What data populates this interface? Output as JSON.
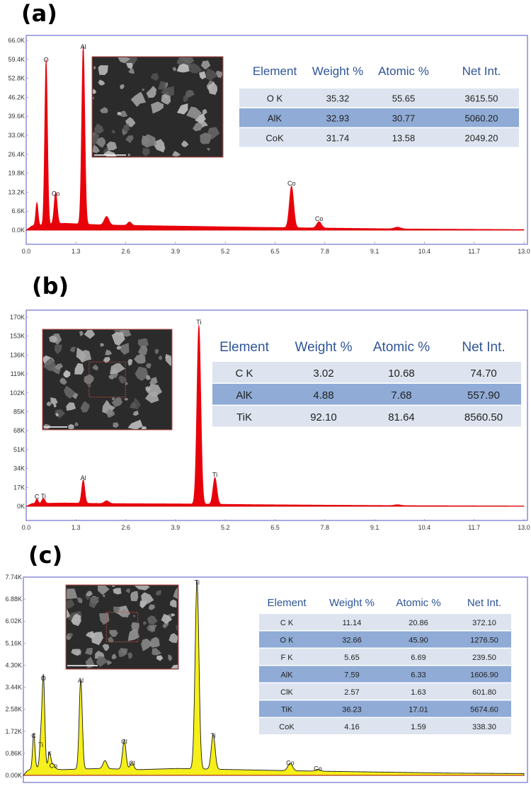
{
  "panels": [
    "(a)",
    "(b)",
    "(c)"
  ],
  "chart_data": [
    {
      "type": "line",
      "x_ticks": [
        "0.0",
        "1.3",
        "2.6",
        "3.9",
        "5.2",
        "6.5",
        "7.8",
        "9.1",
        "10.4",
        "11.7",
        "13.0"
      ],
      "y_ticks": [
        "0.0K",
        "6.6K",
        "13.2K",
        "19.8K",
        "26.4K",
        "33.0K",
        "39.6K",
        "46.2K",
        "52.8K",
        "59.4K",
        "66.0K"
      ],
      "xlim": [
        0,
        13.0
      ],
      "ylim": [
        0,
        66000
      ],
      "fill_color": "#e8000b",
      "line_color": "#e8000b",
      "peaks": [
        {
          "x": 0.28,
          "y": 8000,
          "w": 0.03
        },
        {
          "x": 0.52,
          "y": 57500,
          "w": 0.035
        },
        {
          "x": 0.77,
          "y": 11000,
          "w": 0.04
        },
        {
          "x": 1.49,
          "y": 62000,
          "w": 0.04
        },
        {
          "x": 2.1,
          "y": 3000,
          "w": 0.06
        },
        {
          "x": 2.7,
          "y": 1200,
          "w": 0.05
        },
        {
          "x": 6.93,
          "y": 14500,
          "w": 0.055
        },
        {
          "x": 7.65,
          "y": 2200,
          "w": 0.06
        },
        {
          "x": 9.7,
          "y": 600,
          "w": 0.08
        }
      ],
      "baseline": [
        [
          0,
          0
        ],
        [
          0.15,
          1500
        ],
        [
          1.0,
          2400
        ],
        [
          2.0,
          1800
        ],
        [
          4.0,
          1400
        ],
        [
          6.0,
          1000
        ],
        [
          8.0,
          700
        ],
        [
          10.0,
          400
        ],
        [
          13.0,
          200
        ]
      ],
      "peak_labels": [
        {
          "text": "O",
          "x": 0.52,
          "y": 57500
        },
        {
          "text": "Al",
          "x": 1.49,
          "y": 62000
        },
        {
          "text": "Co",
          "x": 0.77,
          "y": 11000
        },
        {
          "text": "Co",
          "x": 6.93,
          "y": 14500
        },
        {
          "text": "Co",
          "x": 7.65,
          "y": 2200
        }
      ],
      "table": {
        "header": [
          "Element",
          "Weight %",
          "Atomic %",
          "Net Int."
        ],
        "rows": [
          [
            "O K",
            "35.32",
            "55.65",
            "3615.50"
          ],
          [
            "AlK",
            "32.93",
            "30.77",
            "5060.20"
          ],
          [
            "CoK",
            "31.74",
            "13.58",
            "2049.20"
          ]
        ]
      }
    },
    {
      "type": "line",
      "x_ticks": [
        "0.0",
        "1.3",
        "2.6",
        "3.9",
        "5.2",
        "6.5",
        "7.8",
        "9.1",
        "10.4",
        "11.7",
        "13.0"
      ],
      "y_ticks": [
        "0K",
        "17K",
        "34K",
        "51K",
        "68K",
        "85K",
        "102K",
        "119K",
        "136K",
        "153K",
        "170K"
      ],
      "xlim": [
        0,
        13.0
      ],
      "ylim": [
        0,
        170000
      ],
      "fill_color": "#e8000b",
      "line_color": "#e8000b",
      "peaks": [
        {
          "x": 0.28,
          "y": 4000,
          "w": 0.03
        },
        {
          "x": 0.45,
          "y": 4500,
          "w": 0.04
        },
        {
          "x": 1.49,
          "y": 21000,
          "w": 0.04
        },
        {
          "x": 2.1,
          "y": 2500,
          "w": 0.06
        },
        {
          "x": 4.51,
          "y": 161000,
          "w": 0.05
        },
        {
          "x": 4.93,
          "y": 24000,
          "w": 0.05
        },
        {
          "x": 9.7,
          "y": 800,
          "w": 0.08
        }
      ],
      "baseline": [
        [
          0,
          0
        ],
        [
          0.15,
          2500
        ],
        [
          1.0,
          3000
        ],
        [
          2.0,
          2500
        ],
        [
          4.0,
          2200
        ],
        [
          6.0,
          1500
        ],
        [
          8.0,
          1000
        ],
        [
          10.0,
          600
        ],
        [
          13.0,
          300
        ]
      ],
      "peak_labels": [
        {
          "text": "C",
          "x": 0.28,
          "y": 4000
        },
        {
          "text": "Ti",
          "x": 0.45,
          "y": 4500
        },
        {
          "text": "Al",
          "x": 1.49,
          "y": 21000
        },
        {
          "text": "Ti",
          "x": 4.51,
          "y": 161000
        },
        {
          "text": "Ti",
          "x": 4.93,
          "y": 24000
        }
      ],
      "table": {
        "header": [
          "Element",
          "Weight %",
          "Atomic %",
          "Net Int."
        ],
        "rows": [
          [
            "C K",
            "3.02",
            "10.68",
            "74.70"
          ],
          [
            "AlK",
            "4.88",
            "7.68",
            "557.90"
          ],
          [
            "TiK",
            "92.10",
            "81.64",
            "8560.50"
          ]
        ]
      }
    },
    {
      "type": "line",
      "x_ticks": [
        "0.0",
        "1.3",
        "2.6",
        "3.9",
        "5.2",
        "6.5",
        "7.8",
        "9.1",
        "10.4",
        "11.7",
        "13.0"
      ],
      "y_ticks": [
        "0.00K",
        "0.86K",
        "1.72K",
        "2.58K",
        "3.44K",
        "4.30K",
        "5.16K",
        "6.02K",
        "6.88K",
        "7.74K"
      ],
      "xlim": [
        0,
        13.0
      ],
      "ylim": [
        0,
        8600
      ],
      "fill_color": "#f5ef1a",
      "line_color": "#1a1a1a",
      "peaks": [
        {
          "x": 0.27,
          "y": 1500,
          "w": 0.03
        },
        {
          "x": 0.45,
          "y": 1100,
          "w": 0.03
        },
        {
          "x": 0.52,
          "y": 4000,
          "w": 0.035
        },
        {
          "x": 0.68,
          "y": 700,
          "w": 0.035
        },
        {
          "x": 0.78,
          "y": 200,
          "w": 0.04
        },
        {
          "x": 1.49,
          "y": 3900,
          "w": 0.04
        },
        {
          "x": 2.12,
          "y": 350,
          "w": 0.05
        },
        {
          "x": 2.62,
          "y": 1250,
          "w": 0.045
        },
        {
          "x": 2.82,
          "y": 300,
          "w": 0.045
        },
        {
          "x": 4.51,
          "y": 8150,
          "w": 0.05
        },
        {
          "x": 4.93,
          "y": 1500,
          "w": 0.05
        },
        {
          "x": 6.93,
          "y": 330,
          "w": 0.06
        },
        {
          "x": 7.65,
          "y": 80,
          "w": 0.06
        }
      ],
      "baseline": [
        [
          0,
          0
        ],
        [
          0.1,
          200
        ],
        [
          0.3,
          350
        ],
        [
          1.0,
          250
        ],
        [
          2.0,
          300
        ],
        [
          3.0,
          250
        ],
        [
          4.0,
          300
        ],
        [
          5.5,
          250
        ],
        [
          7.0,
          200
        ],
        [
          9.0,
          150
        ],
        [
          11.0,
          100
        ],
        [
          13.0,
          80
        ]
      ],
      "peak_labels": [
        {
          "text": "C",
          "x": 0.27,
          "y": 1500
        },
        {
          "text": "Ti",
          "x": 0.45,
          "y": 1100
        },
        {
          "text": "O",
          "x": 0.52,
          "y": 4000
        },
        {
          "text": "F",
          "x": 0.68,
          "y": 700
        },
        {
          "text": "Co",
          "x": 0.78,
          "y": 200
        },
        {
          "text": "Al",
          "x": 1.49,
          "y": 3900
        },
        {
          "text": "Cl",
          "x": 2.62,
          "y": 1250
        },
        {
          "text": "Cl",
          "x": 2.82,
          "y": 300
        },
        {
          "text": "Ti",
          "x": 4.51,
          "y": 8150
        },
        {
          "text": "Ti",
          "x": 4.93,
          "y": 1500
        },
        {
          "text": "Co",
          "x": 6.93,
          "y": 330
        },
        {
          "text": "Co",
          "x": 7.65,
          "y": 80
        }
      ],
      "table": {
        "header": [
          "Element",
          "Weight %",
          "Atomic %",
          "Net Int."
        ],
        "rows": [
          [
            "C K",
            "11.14",
            "20.86",
            "372.10"
          ],
          [
            "O K",
            "32.66",
            "45.90",
            "1276.50"
          ],
          [
            "F K",
            "5.65",
            "6.69",
            "239.50"
          ],
          [
            "AlK",
            "7.59",
            "6.33",
            "1606.90"
          ],
          [
            "ClK",
            "2.57",
            "1.63",
            "601.80"
          ],
          [
            "TiK",
            "36.23",
            "17.01",
            "5674.60"
          ],
          [
            "CoK",
            "4.16",
            "1.59",
            "338.30"
          ]
        ]
      }
    }
  ]
}
